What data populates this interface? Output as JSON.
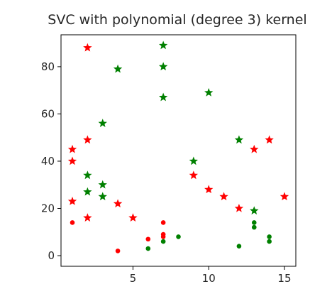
{
  "chart_data": {
    "type": "scatter",
    "title": "SVC with polynomial (degree 3) kernel",
    "xlabel": "",
    "ylabel": "",
    "xlim": [
      0.25,
      15.75
    ],
    "ylim": [
      -4.5,
      93.5
    ],
    "xticks": [
      5,
      10,
      15
    ],
    "yticks": [
      0,
      20,
      40,
      60,
      80
    ],
    "grid": false,
    "legend": "none",
    "series": [
      {
        "marker": "star",
        "color": "#ff0000",
        "points": [
          {
            "x": 1,
            "y": 45
          },
          {
            "x": 1,
            "y": 40
          },
          {
            "x": 1,
            "y": 23
          },
          {
            "x": 2,
            "y": 88
          },
          {
            "x": 2,
            "y": 49
          },
          {
            "x": 2,
            "y": 16
          },
          {
            "x": 4,
            "y": 22
          },
          {
            "x": 5,
            "y": 16
          },
          {
            "x": 9,
            "y": 34
          },
          {
            "x": 10,
            "y": 28
          },
          {
            "x": 11,
            "y": 25
          },
          {
            "x": 12,
            "y": 20
          },
          {
            "x": 13,
            "y": 45
          },
          {
            "x": 14,
            "y": 49
          },
          {
            "x": 15,
            "y": 25
          }
        ]
      },
      {
        "marker": "star",
        "color": "#008000",
        "points": [
          {
            "x": 2,
            "y": 34
          },
          {
            "x": 2,
            "y": 27
          },
          {
            "x": 3,
            "y": 56
          },
          {
            "x": 3,
            "y": 30
          },
          {
            "x": 3,
            "y": 25
          },
          {
            "x": 4,
            "y": 79
          },
          {
            "x": 7,
            "y": 89
          },
          {
            "x": 7,
            "y": 80
          },
          {
            "x": 7,
            "y": 67
          },
          {
            "x": 9,
            "y": 40
          },
          {
            "x": 10,
            "y": 69
          },
          {
            "x": 12,
            "y": 49
          },
          {
            "x": 13,
            "y": 19
          }
        ]
      },
      {
        "marker": "dot",
        "color": "#ff0000",
        "points": [
          {
            "x": 1,
            "y": 14
          },
          {
            "x": 4,
            "y": 2
          },
          {
            "x": 6,
            "y": 7
          },
          {
            "x": 7,
            "y": 14
          },
          {
            "x": 7,
            "y": 9
          },
          {
            "x": 7,
            "y": 8
          }
        ]
      },
      {
        "marker": "dot",
        "color": "#008000",
        "points": [
          {
            "x": 6,
            "y": 3
          },
          {
            "x": 7,
            "y": 6
          },
          {
            "x": 8,
            "y": 8
          },
          {
            "x": 12,
            "y": 4
          },
          {
            "x": 13,
            "y": 14
          },
          {
            "x": 13,
            "y": 12
          },
          {
            "x": 14,
            "y": 8
          },
          {
            "x": 14,
            "y": 6
          }
        ]
      }
    ]
  }
}
